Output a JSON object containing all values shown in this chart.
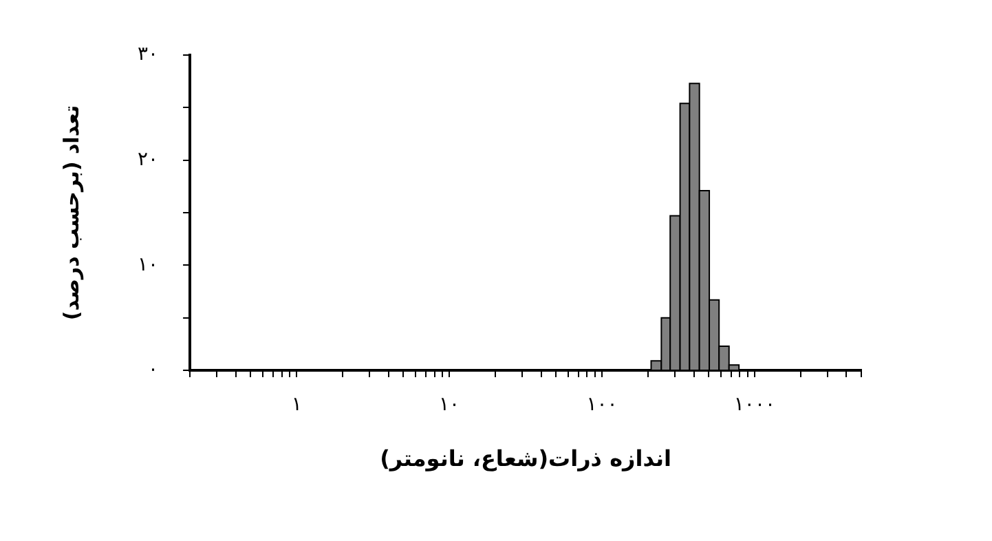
{
  "chart_data": {
    "type": "histogram",
    "xlabel": "اندازه ذرات(شعاع، نانومتر)",
    "ylabel": "تعداد (برحسب درصد)",
    "bins": [
      210,
      245,
      280,
      325,
      375,
      435,
      505,
      585,
      680,
      790
    ],
    "values": [
      0.9,
      5.0,
      14.7,
      25.4,
      27.3,
      17.1,
      6.7,
      2.3,
      0.5
    ],
    "color": "#808080",
    "log": "x",
    "grid": false,
    "xlim": [
      0.2,
      5000
    ],
    "xticks": [
      {
        "value": 0.2,
        "label": null
      },
      {
        "value": 0.3,
        "label": null
      },
      {
        "value": 0.4,
        "label": null
      },
      {
        "value": 0.5,
        "label": null
      },
      {
        "value": 0.6,
        "label": null
      },
      {
        "value": 0.7,
        "label": null
      },
      {
        "value": 0.8,
        "label": null
      },
      {
        "value": 0.9,
        "label": null
      },
      {
        "value": 1,
        "label": "۱"
      },
      {
        "value": 2,
        "label": null
      },
      {
        "value": 3,
        "label": null
      },
      {
        "value": 4,
        "label": null
      },
      {
        "value": 5,
        "label": null
      },
      {
        "value": 6,
        "label": null
      },
      {
        "value": 7,
        "label": null
      },
      {
        "value": 8,
        "label": null
      },
      {
        "value": 9,
        "label": null
      },
      {
        "value": 10,
        "label": "۱۰"
      },
      {
        "value": 20,
        "label": null
      },
      {
        "value": 30,
        "label": null
      },
      {
        "value": 40,
        "label": null
      },
      {
        "value": 50,
        "label": null
      },
      {
        "value": 60,
        "label": null
      },
      {
        "value": 70,
        "label": null
      },
      {
        "value": 80,
        "label": null
      },
      {
        "value": 90,
        "label": null
      },
      {
        "value": 100,
        "label": "۱۰۰"
      },
      {
        "value": 200,
        "label": null
      },
      {
        "value": 300,
        "label": null
      },
      {
        "value": 400,
        "label": null
      },
      {
        "value": 500,
        "label": null
      },
      {
        "value": 600,
        "label": null
      },
      {
        "value": 700,
        "label": null
      },
      {
        "value": 800,
        "label": null
      },
      {
        "value": 900,
        "label": null
      },
      {
        "value": 1000,
        "label": "۱۰۰۰"
      },
      {
        "value": 2000,
        "label": null
      },
      {
        "value": 3000,
        "label": null
      },
      {
        "value": 4000,
        "label": null
      },
      {
        "value": 5000,
        "label": null
      }
    ],
    "ylim": [
      0,
      30
    ],
    "yticks": [
      {
        "value": 0,
        "label": "۰"
      },
      {
        "value": 5,
        "label": null
      },
      {
        "value": 10,
        "label": "۱۰"
      },
      {
        "value": 15,
        "label": null
      },
      {
        "value": 20,
        "label": "۲۰"
      },
      {
        "value": 25,
        "label": null
      },
      {
        "value": 30,
        "label": "۳۰"
      }
    ]
  }
}
